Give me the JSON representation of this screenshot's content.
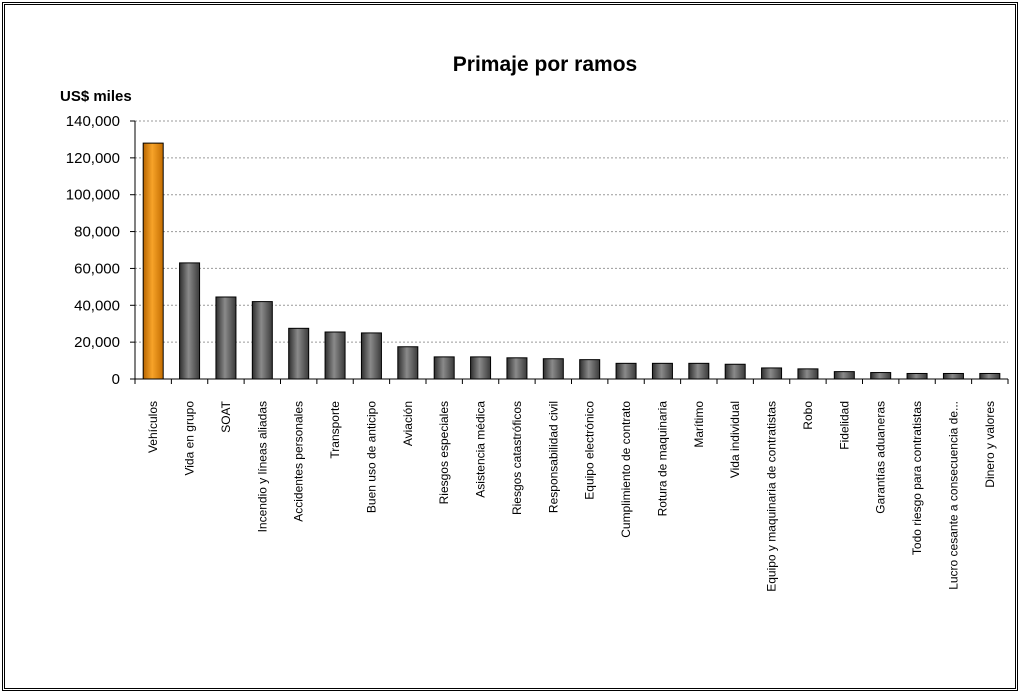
{
  "chart_data": {
    "type": "bar",
    "title": "Primaje por ramos",
    "ylabel": "US$ miles",
    "xlabel": "",
    "ylim": [
      0,
      140000
    ],
    "yticks": [
      0,
      20000,
      40000,
      60000,
      80000,
      100000,
      120000,
      140000
    ],
    "ytick_labels": [
      "0",
      "20,000",
      "40,000",
      "60,000",
      "80,000",
      "100,000",
      "120,000",
      "140,000"
    ],
    "grid": true,
    "categories": [
      "Vehículos",
      "Vida en grupo",
      "SOAT",
      "Incendio y líneas aliadas",
      "Accidentes personales",
      "Transporte",
      "Buen uso de anticipo",
      "Aviación",
      "Riesgos especiales",
      "Asistencia médica",
      "Riesgos catastróficos",
      "Responsabilidad civil",
      "Equipo electrónico",
      "Cumplimiento de contrato",
      "Rotura de maquinaria",
      "Marítimo",
      "Vida individual",
      "Equipo y maquinaria de contratistas",
      "Robo",
      "Fidelidad",
      "Garantías aduaneras",
      "Todo riesgo para contratistas",
      "Lucro cesante a consecuencia de...",
      "Dinero y valores"
    ],
    "values": [
      128000,
      63000,
      44500,
      42000,
      27500,
      25500,
      25000,
      17500,
      12000,
      12000,
      11500,
      11000,
      10500,
      8500,
      8500,
      8500,
      8000,
      6000,
      5500,
      4000,
      3500,
      3000,
      3000,
      3000
    ],
    "colors": {
      "highlight": "#f28c00",
      "bar": "#606060",
      "highlight_index": 0
    }
  }
}
